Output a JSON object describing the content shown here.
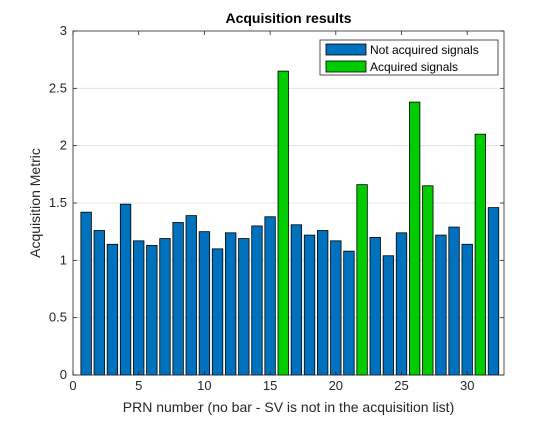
{
  "chart_data": {
    "type": "bar",
    "title": "Acquisition results",
    "xlabel": "PRN number (no bar - SV is not in the acquisition list)",
    "ylabel": "Acquisition Metric",
    "xlim": [
      0,
      32.8
    ],
    "ylim": [
      0,
      3
    ],
    "xticks": [
      0,
      5,
      10,
      15,
      20,
      25,
      30
    ],
    "yticks": [
      0,
      0.5,
      1,
      1.5,
      2,
      2.5,
      3
    ],
    "ytick_labels": [
      "0",
      "0.5",
      "1",
      "1.5",
      "2",
      "2.5",
      "3"
    ],
    "grid": true,
    "legend_position": "top-right",
    "series": [
      {
        "name": "Not acquired signals",
        "color": "#0072bd",
        "x": [
          1,
          2,
          3,
          4,
          5,
          6,
          7,
          8,
          9,
          10,
          11,
          12,
          13,
          14,
          15,
          17,
          18,
          19,
          20,
          21,
          23,
          24,
          25,
          28,
          29,
          30,
          32
        ],
        "values": [
          1.42,
          1.26,
          1.14,
          1.49,
          1.17,
          1.13,
          1.19,
          1.33,
          1.39,
          1.25,
          1.1,
          1.24,
          1.19,
          1.3,
          1.38,
          1.31,
          1.22,
          1.26,
          1.17,
          1.08,
          1.2,
          1.04,
          1.24,
          1.22,
          1.29,
          1.14,
          1.46
        ]
      },
      {
        "name": "Acquired signals",
        "color": "#00cc00",
        "x": [
          16,
          22,
          26,
          27,
          31
        ],
        "values": [
          2.65,
          1.66,
          2.38,
          1.65,
          2.1
        ]
      }
    ]
  }
}
